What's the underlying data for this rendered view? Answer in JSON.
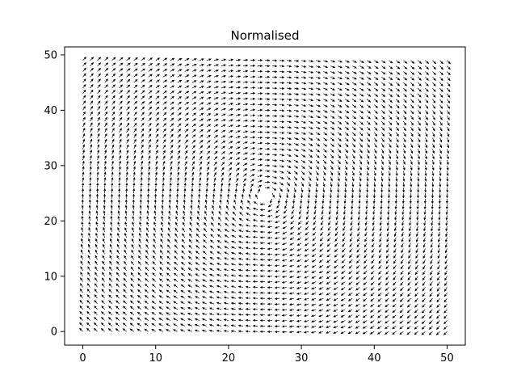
{
  "chart_data": {
    "type": "quiver",
    "title": "Normalised",
    "xlabel": "",
    "ylabel": "",
    "grid_x": {
      "start": 0,
      "stop": 50,
      "step": 1
    },
    "grid_y": {
      "start": 0,
      "stop": 49,
      "step": 1
    },
    "vortex_center": [
      25,
      24.5
    ],
    "rotation": "clockwise",
    "normalised": true,
    "xlim": [
      -2.5,
      52.5
    ],
    "ylim": [
      -2.45,
      51.45
    ],
    "x_ticks": [
      0,
      10,
      20,
      30,
      40,
      50
    ],
    "y_ticks": [
      0,
      10,
      20,
      30,
      40,
      50
    ],
    "x_tick_labels": [
      "0",
      "10",
      "20",
      "30",
      "40",
      "50"
    ],
    "y_tick_labels": [
      "0",
      "10",
      "20",
      "30",
      "40",
      "50"
    ],
    "arrow_color": "#000000",
    "grid": false
  }
}
